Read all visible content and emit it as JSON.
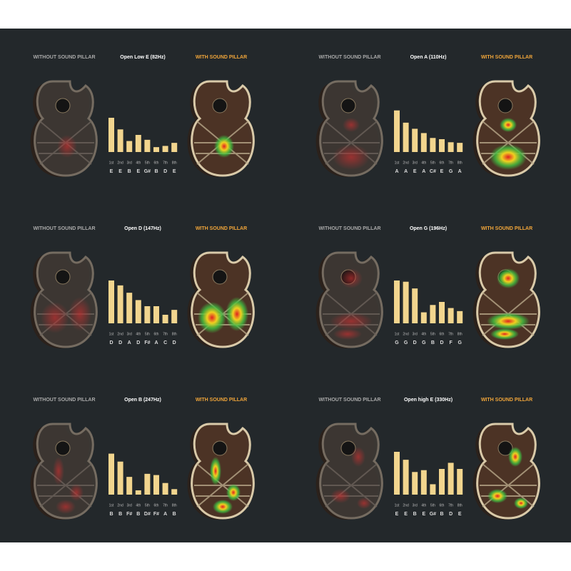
{
  "chart_data": [
    {
      "type": "bar",
      "title": "Open Low E (82Hz)",
      "annotations": [
        "WITHOUT SOUND PILLAR",
        "WITH SOUND PILLAR"
      ],
      "categories": [
        "1st",
        "2nd",
        "3rd",
        "4th",
        "5th",
        "6th",
        "7th",
        "8th"
      ],
      "notes": [
        "E",
        "E",
        "B",
        "E",
        "G#",
        "B",
        "D",
        "E"
      ],
      "values": [
        56,
        37,
        18,
        28,
        20,
        8,
        10,
        15
      ],
      "color": "#f2d58e",
      "ylim": [
        0,
        70
      ]
    },
    {
      "type": "bar",
      "title": "Open A (110Hz)",
      "annotations": [
        "WITHOUT SOUND PILLAR",
        "WITH SOUND PILLAR"
      ],
      "categories": [
        "1st",
        "2nd",
        "3rd",
        "4th",
        "5th",
        "6th",
        "7th",
        "8th"
      ],
      "notes": [
        "A",
        "A",
        "E",
        "A",
        "C#",
        "E",
        "G",
        "A"
      ],
      "values": [
        68,
        48,
        38,
        31,
        23,
        21,
        16,
        15
      ],
      "color": "#f2d58e",
      "ylim": [
        0,
        70
      ]
    },
    {
      "type": "bar",
      "title": "Open D (147Hz)",
      "annotations": [
        "WITHOUT SOUND PILLAR",
        "WITH SOUND PILLAR"
      ],
      "categories": [
        "1st",
        "2nd",
        "3rd",
        "4th",
        "5th",
        "6th",
        "7th",
        "8th"
      ],
      "notes": [
        "D",
        "D",
        "A",
        "D",
        "F#",
        "A",
        "C",
        "D"
      ],
      "values": [
        70,
        62,
        50,
        38,
        28,
        28,
        14,
        22
      ],
      "color": "#f2d58e",
      "ylim": [
        0,
        70
      ]
    },
    {
      "type": "bar",
      "title": "Open G (196Hz)",
      "annotations": [
        "WITHOUT SOUND PILLAR",
        "WITH SOUND PILLAR"
      ],
      "categories": [
        "1st",
        "2nd",
        "3rd",
        "4th",
        "5th",
        "6th",
        "7th",
        "8th"
      ],
      "notes": [
        "G",
        "G",
        "D",
        "G",
        "B",
        "D",
        "F",
        "G"
      ],
      "values": [
        70,
        68,
        57,
        18,
        30,
        35,
        25,
        20
      ],
      "color": "#f2d58e",
      "ylim": [
        0,
        70
      ]
    },
    {
      "type": "bar",
      "title": "Open B (247Hz)",
      "annotations": [
        "WITHOUT SOUND PILLAR",
        "WITH SOUND PILLAR"
      ],
      "categories": [
        "1st",
        "2nd",
        "3rd",
        "4th",
        "5th",
        "6th",
        "7th",
        "8th"
      ],
      "notes": [
        "B",
        "B",
        "F#",
        "B",
        "D#",
        "F#",
        "A",
        "B"
      ],
      "values": [
        67,
        54,
        29,
        7,
        34,
        32,
        19,
        9
      ],
      "color": "#f2d58e",
      "ylim": [
        0,
        70
      ]
    },
    {
      "type": "bar",
      "title": "Open high E (330Hz)",
      "annotations": [
        "WITHOUT SOUND PILLAR",
        "WITH SOUND PILLAR"
      ],
      "categories": [
        "1st",
        "2nd",
        "3rd",
        "4th",
        "5th",
        "6th",
        "7th",
        "8th"
      ],
      "notes": [
        "E",
        "E",
        "B",
        "E",
        "G#",
        "B",
        "D",
        "E"
      ],
      "values": [
        70,
        57,
        37,
        40,
        17,
        42,
        52,
        42
      ],
      "color": "#f2d58e",
      "ylim": [
        0,
        70
      ]
    }
  ]
}
